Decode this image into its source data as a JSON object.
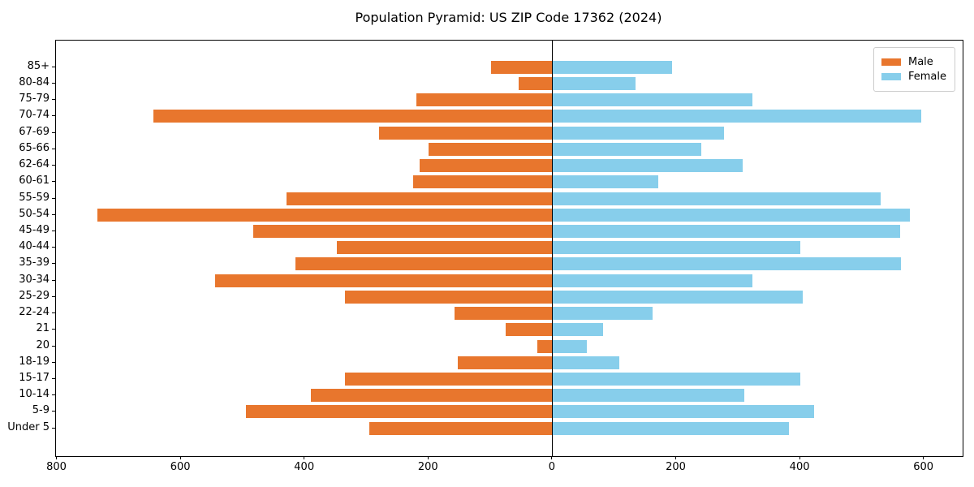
{
  "title": "Population Pyramid: US ZIP Code 17362 (2024)",
  "legend": {
    "male_label": "Male",
    "female_label": "Female"
  },
  "colors": {
    "male": "#E8762D",
    "female": "#87CEEB",
    "axis": "#000000",
    "legend_border": "#cccccc",
    "background": "#ffffff"
  },
  "chart_data": {
    "type": "bar",
    "orientation": "horizontal-pyramid",
    "title": "Population Pyramid: US ZIP Code 17362 (2024)",
    "xlabel": "",
    "ylabel": "",
    "categories_top_to_bottom": [
      "85+",
      "80-84",
      "75-79",
      "70-74",
      "67-69",
      "65-66",
      "62-64",
      "60-61",
      "55-59",
      "50-54",
      "45-49",
      "40-44",
      "35-39",
      "30-34",
      "25-29",
      "22-24",
      "21",
      "20",
      "18-19",
      "15-17",
      "10-14",
      "5-9",
      "Under 5"
    ],
    "series": [
      {
        "name": "Male",
        "side": "left",
        "color": "#E8762D",
        "values": [
          100,
          55,
          220,
          645,
          280,
          200,
          215,
          225,
          430,
          735,
          483,
          348,
          415,
          545,
          335,
          158,
          76,
          25,
          153,
          336,
          390,
          495,
          296
        ]
      },
      {
        "name": "Female",
        "side": "right",
        "color": "#87CEEB",
        "values": [
          193,
          134,
          322,
          595,
          277,
          240,
          307,
          170,
          530,
          577,
          561,
          400,
          563,
          323,
          404,
          161,
          82,
          55,
          108,
          400,
          310,
          422,
          382
        ]
      }
    ],
    "x_axis": {
      "tick_values": [
        -800,
        -600,
        -400,
        -200,
        0,
        200,
        400,
        600
      ],
      "tick_labels": [
        "800",
        "600",
        "400",
        "200",
        "0",
        "200",
        "400",
        "600"
      ],
      "xlim": [
        -802,
        662
      ]
    },
    "grid": false,
    "legend_position": "upper right",
    "zero_line": true
  }
}
